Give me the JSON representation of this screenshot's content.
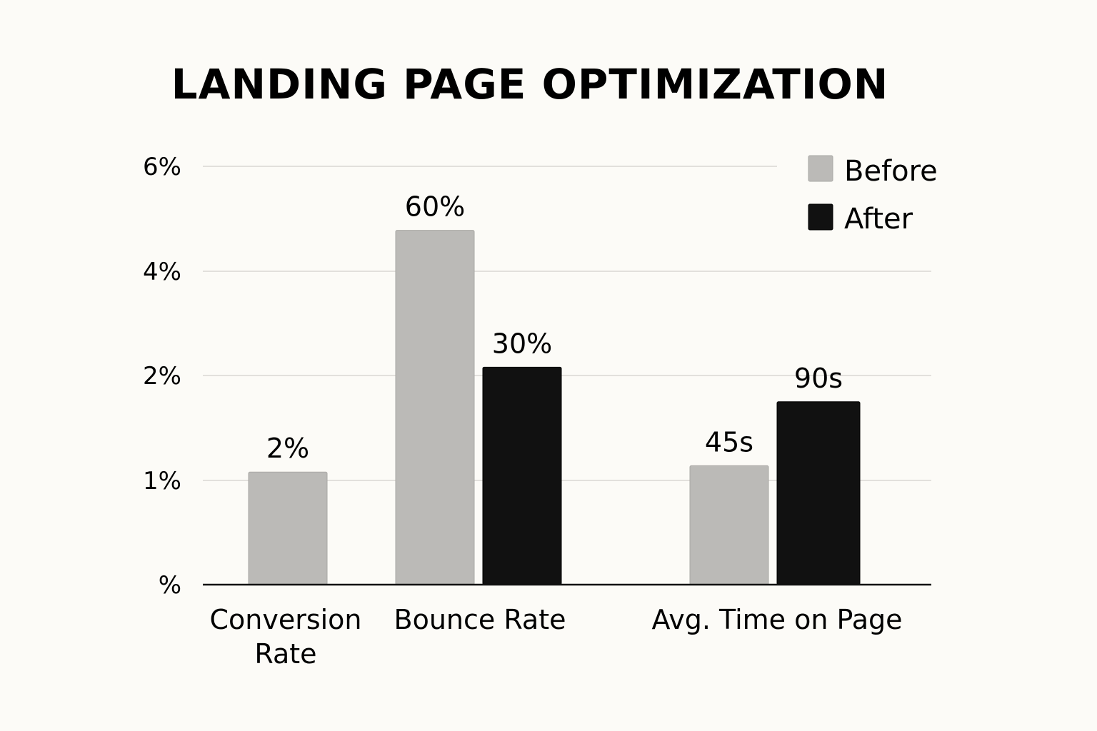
{
  "chart_data": {
    "type": "bar",
    "title": "LANDING PAGE OPTIMIZATION",
    "xlabel": "",
    "ylabel": "",
    "y_ticks": [
      "%",
      "1%",
      "2%",
      "4%",
      "6%"
    ],
    "categories": [
      "Conversion Rate",
      "Bounce Rate",
      "Avg. Time on Page"
    ],
    "category_lines": [
      [
        "Conversion",
        "Rate"
      ],
      [
        "Bounce Rate"
      ],
      [
        "Avg. Time on Page"
      ]
    ],
    "series": [
      {
        "name": "Before",
        "color": "#bbbab7",
        "values": [
          1.08,
          4.78,
          1.14
        ],
        "labels": [
          "2%",
          "60%",
          "45s"
        ]
      },
      {
        "name": "After",
        "color": "#111111",
        "values": [
          null,
          2.16,
          1.75
        ],
        "labels": [
          null,
          "30%",
          "90s"
        ]
      }
    ],
    "legend": {
      "position": "top-right",
      "entries": [
        "Before",
        "After"
      ]
    },
    "grid": true
  }
}
